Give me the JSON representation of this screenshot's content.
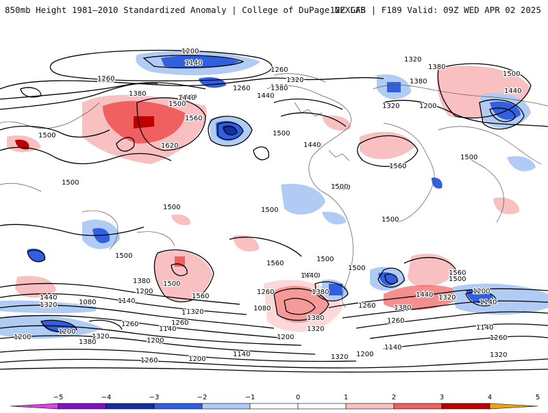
{
  "header": {
    "title_left": "850mb Height 1981–2010 Standardized Anomaly | College of DuPage NEXLAB",
    "title_right": "12Z GFS | F189 Valid: 09Z WED APR 02 2025"
  },
  "map": {
    "contour_labels": [
      {
        "text": "1200"
      },
      {
        "text": "1140"
      },
      {
        "text": "1260"
      },
      {
        "text": "1320"
      },
      {
        "text": "1380"
      },
      {
        "text": "1320"
      },
      {
        "text": "1380"
      },
      {
        "text": "1260"
      },
      {
        "text": "1320"
      },
      {
        "text": "1200"
      },
      {
        "text": "1500"
      },
      {
        "text": "1440"
      },
      {
        "text": "1380"
      },
      {
        "text": "1440"
      },
      {
        "text": "1260"
      },
      {
        "text": "1320"
      },
      {
        "text": "1380"
      },
      {
        "text": "1500"
      },
      {
        "text": "1560"
      },
      {
        "text": "1620"
      },
      {
        "text": "1440"
      },
      {
        "text": "1500"
      },
      {
        "text": "1440"
      },
      {
        "text": "1500"
      },
      {
        "text": "1380"
      },
      {
        "text": "1440"
      },
      {
        "text": "1560"
      },
      {
        "text": "1500"
      },
      {
        "text": "1500"
      },
      {
        "text": "1500"
      },
      {
        "text": "1500"
      },
      {
        "text": "1500"
      },
      {
        "text": "1500"
      },
      {
        "text": "1500"
      },
      {
        "text": "1500"
      },
      {
        "text": "1560"
      },
      {
        "text": "1440"
      },
      {
        "text": "1500"
      },
      {
        "text": "1500"
      },
      {
        "text": "1560"
      },
      {
        "text": "1500"
      },
      {
        "text": "1440"
      },
      {
        "text": "1320"
      },
      {
        "text": "1380"
      },
      {
        "text": "1260"
      },
      {
        "text": "1200"
      },
      {
        "text": "1140"
      },
      {
        "text": "1380"
      },
      {
        "text": "1500"
      },
      {
        "text": "1560"
      },
      {
        "text": "1440"
      },
      {
        "text": "1320"
      },
      {
        "text": "1260"
      },
      {
        "text": "1080"
      },
      {
        "text": "1380"
      },
      {
        "text": "1320"
      },
      {
        "text": "1200"
      },
      {
        "text": "1260"
      },
      {
        "text": "1380"
      },
      {
        "text": "1440"
      },
      {
        "text": "1320"
      },
      {
        "text": "1200"
      },
      {
        "text": "1080"
      },
      {
        "text": "1140"
      },
      {
        "text": "1260"
      },
      {
        "text": "1200"
      },
      {
        "text": "1320"
      },
      {
        "text": "1260"
      },
      {
        "text": "1140"
      },
      {
        "text": "1380"
      },
      {
        "text": "1200"
      },
      {
        "text": "1320"
      },
      {
        "text": "1260"
      },
      {
        "text": "1200"
      },
      {
        "text": "1140"
      },
      {
        "text": "1260"
      },
      {
        "text": "1200"
      },
      {
        "text": "1140"
      },
      {
        "text": "1320"
      },
      {
        "text": "1320"
      },
      {
        "text": "1140"
      },
      {
        "text": "1200"
      }
    ]
  },
  "legend": {
    "ticks": [
      "−5",
      "−4",
      "−3",
      "−2",
      "−1",
      "0",
      "1",
      "2",
      "3",
      "4",
      "5"
    ],
    "colors": [
      "#e040e0",
      "#8010c0",
      "#1030a0",
      "#3060e0",
      "#b0ccf4",
      "#ffffff",
      "#ffffff",
      "#f8c0c0",
      "#f06060",
      "#c00000",
      "#f0a010"
    ]
  }
}
